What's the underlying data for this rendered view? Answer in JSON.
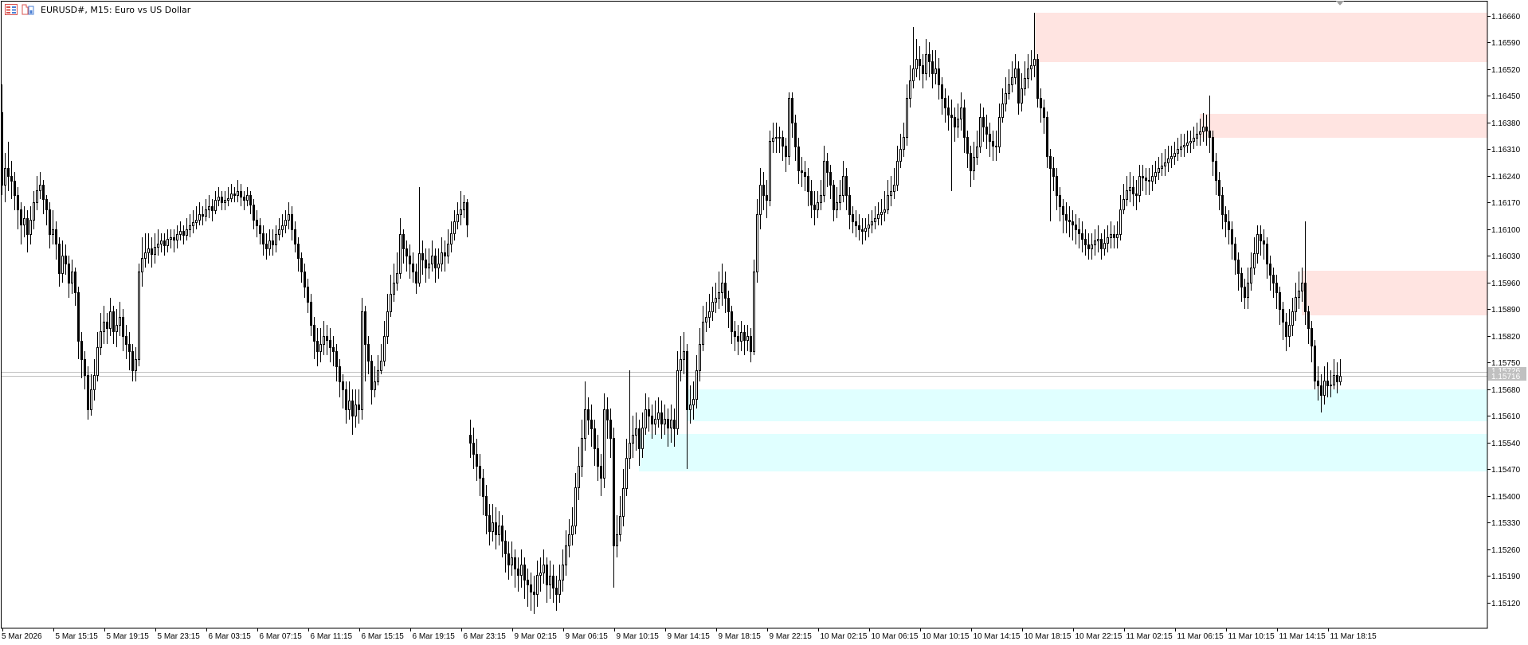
{
  "window": {
    "title": "EURUSD#, M15:  Euro vs US Dollar",
    "icons": [
      "list-icon",
      "chart-template-icon"
    ]
  },
  "colors": {
    "bull_body": "#ffffff",
    "bear_body": "#000000",
    "candle_outline": "#000000",
    "supply_zone": "#ffe4e1",
    "demand_zone": "#e0ffff",
    "bid_ask_line": "#c0c0c0",
    "price_label_bg": "#c0c0c0"
  },
  "chart_data": {
    "type": "candlestick",
    "symbol": "EURUSD#",
    "timeframe": "M15",
    "ylim": [
      1.15055,
      1.16698
    ],
    "grid": false,
    "y_ticks": [
      "1.16660",
      "1.16590",
      "1.16520",
      "1.16450",
      "1.16380",
      "1.16310",
      "1.16240",
      "1.16170",
      "1.16100",
      "1.16030",
      "1.15960",
      "1.15890",
      "1.15820",
      "1.15750",
      "1.15680",
      "1.15610",
      "1.15540",
      "1.15470",
      "1.15400",
      "1.15330",
      "1.15260",
      "1.15190",
      "1.15120"
    ],
    "x_ticks": [
      "5 Mar 2026",
      "5 Mar 15:15",
      "5 Mar 19:15",
      "5 Mar 23:15",
      "6 Mar 03:15",
      "6 Mar 07:15",
      "6 Mar 11:15",
      "6 Mar 15:15",
      "6 Mar 19:15",
      "6 Mar 23:15",
      "9 Mar 02:15",
      "9 Mar 06:15",
      "9 Mar 10:15",
      "9 Mar 14:15",
      "9 Mar 18:15",
      "9 Mar 22:15",
      "10 Mar 02:15",
      "10 Mar 06:15",
      "10 Mar 10:15",
      "10 Mar 14:15",
      "10 Mar 18:15",
      "10 Mar 22:15",
      "11 Mar 02:15",
      "11 Mar 06:15",
      "11 Mar 10:15",
      "11 Mar 14:15",
      "11 Mar 18:15"
    ],
    "bid": "1.15716",
    "ask": "1.15726",
    "zones": [
      {
        "kind": "supply",
        "top": 1.16668,
        "bottom": 1.16539
      },
      {
        "kind": "supply",
        "top": 1.16403,
        "bottom": 1.1634
      },
      {
        "kind": "supply",
        "top": 1.15991,
        "bottom": 1.15874
      },
      {
        "kind": "demand",
        "top": 1.1568,
        "bottom": 1.15596
      },
      {
        "kind": "demand",
        "top": 1.15563,
        "bottom": 1.15465
      }
    ],
    "gap_opens": {
      "0": 1.16407,
      "147": 1.1556
    },
    "close": [
      1.16216,
      1.1626,
      1.16241,
      1.16228,
      1.1619,
      1.16152,
      1.16113,
      1.1613,
      1.16088,
      1.16126,
      1.1617,
      1.16203,
      1.16216,
      1.1618,
      1.16152,
      1.16088,
      1.161,
      1.16062,
      1.15986,
      1.1603,
      1.16011,
      1.1596,
      1.1599,
      1.15935,
      1.15807,
      1.1576,
      1.15718,
      1.15628,
      1.1568,
      1.15718,
      1.1579,
      1.15833,
      1.15858,
      1.1584,
      1.15884,
      1.15833,
      1.1585,
      1.15871,
      1.1582,
      1.158,
      1.15781,
      1.1573,
      1.1576,
      1.1599,
      1.16024,
      1.1604,
      1.1605,
      1.16035,
      1.16055,
      1.16062,
      1.1607,
      1.16058,
      1.16075,
      1.1608,
      1.16072,
      1.16088,
      1.16095,
      1.16085,
      1.16101,
      1.1611,
      1.16118,
      1.16126,
      1.1614,
      1.16135,
      1.16152,
      1.1616,
      1.1615,
      1.16177,
      1.16185,
      1.1617,
      1.16177,
      1.16182,
      1.16195,
      1.1619,
      1.162,
      1.16185,
      1.16177,
      1.1619,
      1.16165,
      1.16126,
      1.1611,
      1.1609,
      1.16062,
      1.1605,
      1.1607,
      1.1606,
      1.16088,
      1.161,
      1.1611,
      1.16126,
      1.1614,
      1.161,
      1.16062,
      1.16024,
      1.1599,
      1.1595,
      1.15909,
      1.1585,
      1.15807,
      1.15781,
      1.158,
      1.1582,
      1.1581,
      1.1579,
      1.15781,
      1.1574,
      1.157,
      1.15679,
      1.15628,
      1.1565,
      1.1561,
      1.1564,
      1.15628,
      1.15884,
      1.158,
      1.15756,
      1.15679,
      1.157,
      1.1573,
      1.15756,
      1.1582,
      1.15884,
      1.1593,
      1.1596,
      1.15986,
      1.16088,
      1.1605,
      1.1603,
      1.16011,
      1.1599,
      1.1596,
      1.16037,
      1.1602,
      1.16,
      1.16011,
      1.1603,
      1.16,
      1.16011,
      1.1604,
      1.1603,
      1.16062,
      1.1609,
      1.1612,
      1.1614,
      1.16152,
      1.1617,
      1.16113,
      1.15539,
      1.1551,
      1.1548,
      1.15449,
      1.154,
      1.1535,
      1.15309,
      1.1533,
      1.153,
      1.15322,
      1.15283,
      1.1525,
      1.1522,
      1.1524,
      1.1521,
      1.15194,
      1.1522,
      1.1518,
      1.15168,
      1.1515,
      1.15143,
      1.15194,
      1.152,
      1.1522,
      1.15168,
      1.1519,
      1.1516,
      1.15143,
      1.1518,
      1.1522,
      1.15271,
      1.153,
      1.15322,
      1.15424,
      1.1548,
      1.15552,
      1.15628,
      1.156,
      1.15577,
      1.15526,
      1.1548,
      1.15449,
      1.15628,
      1.156,
      1.15552,
      1.15271,
      1.153,
      1.15347,
      1.1542,
      1.155,
      1.1554,
      1.1556,
      1.15577,
      1.15526,
      1.1558,
      1.15628,
      1.1561,
      1.1559,
      1.15603,
      1.1562,
      1.1559,
      1.15603,
      1.1558,
      1.156,
      1.15577,
      1.1573,
      1.1576,
      1.15781,
      1.15628,
      1.1564,
      1.15654,
      1.1573,
      1.158,
      1.15858,
      1.1587,
      1.15884,
      1.15909,
      1.1592,
      1.15935,
      1.1596,
      1.1592,
      1.15884,
      1.15833,
      1.1582,
      1.15807,
      1.1583,
      1.1581,
      1.1582,
      1.15781,
      1.1599,
      1.16139,
      1.16216,
      1.1619,
      1.16177,
      1.16331,
      1.1634,
      1.16343,
      1.16343,
      1.1632,
      1.16292,
      1.16445,
      1.1638,
      1.16318,
      1.16254,
      1.1625,
      1.16241,
      1.162,
      1.16165,
      1.16152,
      1.1617,
      1.1619,
      1.16279,
      1.1625,
      1.16216,
      1.16152,
      1.1617,
      1.1619,
      1.16241,
      1.1619,
      1.16139,
      1.1612,
      1.1611,
      1.16101,
      1.16095,
      1.16105,
      1.16113,
      1.1612,
      1.1613,
      1.16139,
      1.16145,
      1.16152,
      1.1619,
      1.162,
      1.16216,
      1.16279,
      1.1631,
      1.16343,
      1.16445,
      1.1649,
      1.16522,
      1.16548,
      1.1653,
      1.16509,
      1.1656,
      1.1654,
      1.16509,
      1.16522,
      1.1648,
      1.16445,
      1.1642,
      1.164,
      1.16394,
      1.16369,
      1.1639,
      1.1642,
      1.16343,
      1.163,
      1.16254,
      1.1629,
      1.16318,
      1.16394,
      1.1637,
      1.1635,
      1.16331,
      1.1632,
      1.16318,
      1.16394,
      1.1643,
      1.16458,
      1.1648,
      1.165,
      1.16522,
      1.16433,
      1.1647,
      1.16497,
      1.16522,
      1.1653,
      1.16548,
      1.16445,
      1.1642,
      1.16394,
      1.16292,
      1.1626,
      1.16241,
      1.1619,
      1.1616,
      1.16139,
      1.16125,
      1.1612,
      1.16113,
      1.161,
      1.1609,
      1.16075,
      1.1606,
      1.1605,
      1.1606,
      1.1607,
      1.16075,
      1.1605,
      1.16065,
      1.1608,
      1.16088,
      1.1608,
      1.16088,
      1.16152,
      1.1618,
      1.16203,
      1.1621,
      1.16195,
      1.1619,
      1.16241,
      1.16235,
      1.1623,
      1.16228,
      1.1624,
      1.1625,
      1.1626,
      1.16267,
      1.16275,
      1.16285,
      1.16292,
      1.163,
      1.1631,
      1.16318,
      1.16322,
      1.16328,
      1.16331,
      1.1634,
      1.1635,
      1.16356,
      1.16369,
      1.1636,
      1.16343,
      1.16279,
      1.1623,
      1.1619,
      1.16139,
      1.1612,
      1.16101,
      1.16062,
      1.1602,
      1.15986,
      1.1595,
      1.15922,
      1.1596,
      1.16,
      1.16037,
      1.16088,
      1.1607,
      1.16062,
      1.16011,
      1.1598,
      1.1596,
      1.15935,
      1.1589,
      1.15858,
      1.1582,
      1.1585,
      1.15884,
      1.15922,
      1.1594,
      1.1596,
      1.15884,
      1.1584,
      1.15794,
      1.15704,
      1.1569,
      1.15666,
      1.15704,
      1.1569,
      1.15692,
      1.15718,
      1.157,
      1.15716
    ],
    "high": [
      1.1648,
      1.163,
      1.1633,
      1.1628,
      1.1625,
      1.1621,
      1.1617,
      1.1616,
      1.1615,
      1.1616,
      1.162,
      1.1624,
      1.1625,
      1.1623,
      1.1619,
      1.1617,
      1.1615,
      1.1612,
      1.1608,
      1.1607,
      1.1606,
      1.1603,
      1.1602,
      1.16,
      1.1595,
      1.1583,
      1.1578,
      1.1574,
      1.1572,
      1.1576,
      1.1583,
      1.1588,
      1.159,
      1.1588,
      1.1592,
      1.159,
      1.1589,
      1.1591,
      1.1589,
      1.1585,
      1.1583,
      1.158,
      1.1579,
      1.1601,
      1.1608,
      1.1609,
      1.1609,
      1.1608,
      1.1609,
      1.161,
      1.1609,
      1.1609,
      1.161,
      1.161,
      1.161,
      1.1611,
      1.1612,
      1.1611,
      1.1613,
      1.1614,
      1.1615,
      1.1616,
      1.1617,
      1.1616,
      1.1618,
      1.1619,
      1.1618,
      1.162,
      1.1621,
      1.162,
      1.162,
      1.1621,
      1.1622,
      1.1621,
      1.1623,
      1.1622,
      1.162,
      1.1621,
      1.162,
      1.1618,
      1.1615,
      1.1613,
      1.1611,
      1.1609,
      1.161,
      1.161,
      1.1611,
      1.1613,
      1.1614,
      1.1615,
      1.1617,
      1.1616,
      1.1612,
      1.1608,
      1.1604,
      1.1601,
      1.1597,
      1.1593,
      1.1587,
      1.1584,
      1.1584,
      1.1586,
      1.1585,
      1.1584,
      1.1582,
      1.158,
      1.1576,
      1.1572,
      1.157,
      1.157,
      1.1568,
      1.1568,
      1.1568,
      1.1592,
      1.159,
      1.1582,
      1.1577,
      1.1574,
      1.1577,
      1.158,
      1.1586,
      1.1593,
      1.1598,
      1.1601,
      1.1604,
      1.1613,
      1.161,
      1.1607,
      1.1606,
      1.1604,
      1.1601,
      1.1621,
      1.1607,
      1.1605,
      1.1605,
      1.1607,
      1.1605,
      1.1605,
      1.1608,
      1.1607,
      1.161,
      1.1612,
      1.1615,
      1.1617,
      1.162,
      1.1619,
      1.1618,
      1.156,
      1.1558,
      1.1555,
      1.1551,
      1.1547,
      1.1543,
      1.1538,
      1.1538,
      1.1537,
      1.1536,
      1.1535,
      1.1531,
      1.1528,
      1.1528,
      1.1526,
      1.1524,
      1.1526,
      1.1524,
      1.1521,
      1.152,
      1.1519,
      1.1523,
      1.1524,
      1.1526,
      1.1524,
      1.1523,
      1.1522,
      1.1519,
      1.1522,
      1.1526,
      1.1531,
      1.1534,
      1.1537,
      1.1546,
      1.1553,
      1.156,
      1.157,
      1.1566,
      1.1564,
      1.156,
      1.1556,
      1.1551,
      1.1567,
      1.1566,
      1.1563,
      1.1558,
      1.1535,
      1.154,
      1.1547,
      1.1555,
      1.1573,
      1.1561,
      1.1562,
      1.156,
      1.1562,
      1.1567,
      1.1566,
      1.1564,
      1.1565,
      1.1566,
      1.1565,
      1.1564,
      1.1563,
      1.1564,
      1.1563,
      1.1578,
      1.1582,
      1.1583,
      1.158,
      1.1569,
      1.157,
      1.1577,
      1.1584,
      1.159,
      1.1591,
      1.1593,
      1.1595,
      1.1596,
      1.1599,
      1.1601,
      1.1599,
      1.1594,
      1.159,
      1.1586,
      1.1585,
      1.1586,
      1.1585,
      1.1585,
      1.1584,
      1.1602,
      1.1618,
      1.1626,
      1.1625,
      1.1623,
      1.1636,
      1.1638,
      1.1638,
      1.1637,
      1.1636,
      1.1634,
      1.1646,
      1.1646,
      1.164,
      1.1634,
      1.1629,
      1.1628,
      1.1626,
      1.1623,
      1.162,
      1.162,
      1.1623,
      1.1632,
      1.163,
      1.1627,
      1.1623,
      1.1621,
      1.1623,
      1.1628,
      1.1626,
      1.1621,
      1.1616,
      1.1615,
      1.1614,
      1.1613,
      1.1613,
      1.1614,
      1.1615,
      1.1616,
      1.1617,
      1.1618,
      1.162,
      1.1623,
      1.1624,
      1.1626,
      1.1632,
      1.1635,
      1.1638,
      1.1648,
      1.1653,
      1.1663,
      1.166,
      1.1658,
      1.1656,
      1.166,
      1.1659,
      1.1657,
      1.1657,
      1.1655,
      1.165,
      1.1647,
      1.1645,
      1.1644,
      1.1642,
      1.1643,
      1.1646,
      1.1644,
      1.1636,
      1.1632,
      1.1633,
      1.1636,
      1.1643,
      1.1642,
      1.164,
      1.1638,
      1.1636,
      1.1636,
      1.1643,
      1.1647,
      1.165,
      1.1652,
      1.1654,
      1.1656,
      1.1654,
      1.1651,
      1.1654,
      1.1656,
      1.1657,
      1.16668,
      1.1656,
      1.1647,
      1.1644,
      1.1641,
      1.1631,
      1.1629,
      1.1626,
      1.1621,
      1.1618,
      1.1617,
      1.1616,
      1.1615,
      1.1614,
      1.1613,
      1.1612,
      1.161,
      1.1609,
      1.1609,
      1.161,
      1.1611,
      1.1609,
      1.161,
      1.1611,
      1.1612,
      1.1611,
      1.1612,
      1.1619,
      1.1622,
      1.1624,
      1.1625,
      1.1624,
      1.1623,
      1.1627,
      1.1627,
      1.1626,
      1.1626,
      1.1627,
      1.1628,
      1.1629,
      1.163,
      1.1631,
      1.1632,
      1.1632,
      1.1633,
      1.1634,
      1.1635,
      1.1635,
      1.1636,
      1.1636,
      1.1637,
      1.1638,
      1.1639,
      1.16405,
      1.164,
      1.1645,
      1.1636,
      1.163,
      1.1625,
      1.1621,
      1.1616,
      1.1615,
      1.1612,
      1.1608,
      1.1604,
      1.16,
      1.1597,
      1.16,
      1.1604,
      1.1608,
      1.1611,
      1.1611,
      1.161,
      1.1608,
      1.1603,
      1.16,
      1.1598,
      1.1595,
      1.1591,
      1.1588,
      1.1589,
      1.1592,
      1.1596,
      1.1599,
      1.16,
      1.16121,
      1.159,
      1.1586,
      1.1581,
      1.1574,
      1.1572,
      1.1574,
      1.1575,
      1.1573,
      1.1576,
      1.1575,
      1.1576
    ],
    "low": [
      1.1619,
      1.1617,
      1.162,
      1.1618,
      1.1615,
      1.161,
      1.1606,
      1.1608,
      1.1604,
      1.1606,
      1.161,
      1.1615,
      1.1618,
      1.1614,
      1.1611,
      1.1605,
      1.1606,
      1.1602,
      1.1595,
      1.1596,
      1.1598,
      1.1592,
      1.1593,
      1.159,
      1.1576,
      1.1571,
      1.1568,
      1.156,
      1.1561,
      1.1565,
      1.157,
      1.1577,
      1.158,
      1.158,
      1.1582,
      1.158,
      1.1579,
      1.1582,
      1.1578,
      1.1576,
      1.1573,
      1.157,
      1.157,
      1.1574,
      1.1595,
      1.16,
      1.1601,
      1.16,
      1.1601,
      1.1603,
      1.1604,
      1.1603,
      1.1604,
      1.1605,
      1.1604,
      1.1605,
      1.1607,
      1.1606,
      1.1607,
      1.1608,
      1.1609,
      1.161,
      1.1611,
      1.1611,
      1.1612,
      1.1613,
      1.1612,
      1.1614,
      1.1616,
      1.1615,
      1.1615,
      1.1616,
      1.1617,
      1.1617,
      1.1617,
      1.1616,
      1.1615,
      1.1616,
      1.1614,
      1.161,
      1.1608,
      1.1606,
      1.1603,
      1.1602,
      1.1603,
      1.1603,
      1.1604,
      1.1607,
      1.1608,
      1.1609,
      1.161,
      1.1607,
      1.1604,
      1.1599,
      1.1596,
      1.1592,
      1.1588,
      1.1582,
      1.1576,
      1.1574,
      1.1575,
      1.1577,
      1.1577,
      1.1575,
      1.1574,
      1.157,
      1.1566,
      1.1563,
      1.1559,
      1.156,
      1.1556,
      1.1558,
      1.1559,
      1.156,
      1.157,
      1.1572,
      1.1564,
      1.1566,
      1.1569,
      1.1572,
      1.1574,
      1.158,
      1.1587,
      1.1591,
      1.1594,
      1.1597,
      1.1601,
      1.1599,
      1.1597,
      1.1596,
      1.1593,
      1.1595,
      1.1598,
      1.1596,
      1.1597,
      1.1599,
      1.1596,
      1.1597,
      1.1599,
      1.1599,
      1.1601,
      1.1604,
      1.1607,
      1.161,
      1.1611,
      1.1613,
      1.1608,
      1.155,
      1.1547,
      1.1544,
      1.154,
      1.1535,
      1.153,
      1.1527,
      1.1528,
      1.1526,
      1.1527,
      1.1524,
      1.152,
      1.1518,
      1.1519,
      1.1516,
      1.1515,
      1.1516,
      1.1513,
      1.1511,
      1.151,
      1.1509,
      1.1511,
      1.1515,
      1.1517,
      1.1512,
      1.1513,
      1.1512,
      1.151,
      1.1512,
      1.1515,
      1.1519,
      1.1524,
      1.1527,
      1.153,
      1.1539,
      1.1545,
      1.1552,
      1.1556,
      1.1553,
      1.1548,
      1.1544,
      1.154,
      1.1542,
      1.1555,
      1.155,
      1.1516,
      1.1524,
      1.1528,
      1.1532,
      1.154,
      1.1547,
      1.155,
      1.1552,
      1.1548,
      1.155,
      1.1556,
      1.1557,
      1.1555,
      1.1556,
      1.1558,
      1.1555,
      1.1556,
      1.1553,
      1.1554,
      1.1553,
      1.1556,
      1.157,
      1.1572,
      1.1547,
      1.1559,
      1.156,
      1.1563,
      1.157,
      1.1578,
      1.1583,
      1.1584,
      1.1586,
      1.1588,
      1.1589,
      1.159,
      1.1588,
      1.1584,
      1.158,
      1.1578,
      1.1577,
      1.1578,
      1.1577,
      1.1578,
      1.1575,
      1.1577,
      1.1596,
      1.161,
      1.1615,
      1.1613,
      1.1616,
      1.163,
      1.163,
      1.163,
      1.1628,
      1.1625,
      1.1627,
      1.1634,
      1.1628,
      1.1622,
      1.1621,
      1.162,
      1.1616,
      1.1613,
      1.1611,
      1.1613,
      1.1615,
      1.1617,
      1.1621,
      1.1618,
      1.1612,
      1.1613,
      1.1615,
      1.1617,
      1.1615,
      1.161,
      1.1609,
      1.1608,
      1.1607,
      1.1606,
      1.1607,
      1.1608,
      1.1609,
      1.161,
      1.1611,
      1.1611,
      1.1612,
      1.1614,
      1.1616,
      1.1618,
      1.162,
      1.1626,
      1.1629,
      1.1632,
      1.1642,
      1.1647,
      1.165,
      1.1649,
      1.1647,
      1.1649,
      1.165,
      1.1647,
      1.1648,
      1.1644,
      1.164,
      1.1638,
      1.1636,
      1.162,
      1.1633,
      1.1634,
      1.1636,
      1.163,
      1.1626,
      1.1621,
      1.1623,
      1.1627,
      1.163,
      1.1633,
      1.1631,
      1.1629,
      1.1628,
      1.1628,
      1.163,
      1.1638,
      1.1641,
      1.1644,
      1.1646,
      1.1648,
      1.164,
      1.1641,
      1.1645,
      1.1647,
      1.1649,
      1.165,
      1.1642,
      1.1638,
      1.1635,
      1.1626,
      1.1612,
      1.162,
      1.1615,
      1.1612,
      1.1609,
      1.1609,
      1.1608,
      1.1607,
      1.1606,
      1.1605,
      1.1604,
      1.1603,
      1.1602,
      1.1602,
      1.1603,
      1.1604,
      1.1602,
      1.1603,
      1.1604,
      1.1605,
      1.1605,
      1.1605,
      1.1607,
      1.1614,
      1.1616,
      1.1617,
      1.1616,
      1.1615,
      1.1617,
      1.162,
      1.1619,
      1.1619,
      1.162,
      1.1622,
      1.1623,
      1.1624,
      1.1624,
      1.1625,
      1.1626,
      1.1627,
      1.1628,
      1.1629,
      1.1629,
      1.163,
      1.163,
      1.1631,
      1.1632,
      1.1632,
      1.1633,
      1.1632,
      1.163,
      1.1624,
      1.1619,
      1.1615,
      1.161,
      1.1608,
      1.1606,
      1.1602,
      1.1598,
      1.1594,
      1.1591,
      1.1589,
      1.1589,
      1.1594,
      1.1598,
      1.1601,
      1.1603,
      1.1602,
      1.1597,
      1.1594,
      1.1592,
      1.1589,
      1.1585,
      1.1581,
      1.1578,
      1.1579,
      1.1582,
      1.1586,
      1.1589,
      1.1591,
      1.1585,
      1.158,
      1.1575,
      1.1568,
      1.1565,
      1.1562,
      1.1564,
      1.1566,
      1.1566,
      1.1568,
      1.1567,
      1.1569
    ]
  }
}
